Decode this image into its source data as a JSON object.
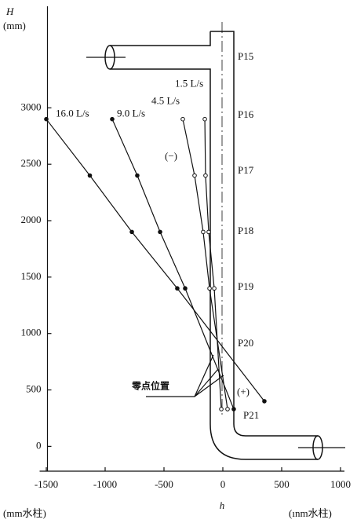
{
  "chart_data": {
    "type": "line",
    "y_label": "H",
    "y_unit": "(mm)",
    "x_label": "h",
    "x_unit_left": "(mm水柱)",
    "x_unit_right": "(ınm水柱)",
    "xlim": [
      -1490,
      1100
    ],
    "ylim": [
      -220,
      3900
    ],
    "xticks": [
      -1500,
      -1000,
      -500,
      0,
      500,
      1000
    ],
    "yticks": [
      0,
      500,
      1000,
      1500,
      2000,
      2500,
      3000
    ],
    "series": [
      {
        "name": "16.0 L/s",
        "color": "#111",
        "marker": "filled",
        "x": [
          -1500,
          -1130,
          -773,
          -387,
          353
        ],
        "values": [
          2900,
          2400,
          1900,
          1400,
          400
        ]
      },
      {
        "name": "9.0 L/s",
        "color": "#111",
        "marker": "filled",
        "x": [
          -940,
          -727,
          -533,
          -320,
          93
        ],
        "values": [
          2900,
          2400,
          1900,
          1400,
          330
        ]
      },
      {
        "name": "4.5 L/s",
        "color": "#111",
        "marker": "open",
        "x": [
          -340,
          -240,
          -167,
          -113,
          40
        ],
        "values": [
          2900,
          2400,
          1900,
          1400,
          330
        ]
      },
      {
        "name": "1.5 L/s",
        "color": "#111",
        "marker": "open",
        "x": [
          -153,
          -147,
          -120,
          -73,
          -13
        ],
        "values": [
          2900,
          2400,
          1900,
          1400,
          330
        ]
      }
    ],
    "annotations": [
      "(−)",
      "(+)",
      "零点位置"
    ],
    "pipe_labels": [
      "P15",
      "P16",
      "P17",
      "P18",
      "P19",
      "P20",
      "P21"
    ]
  }
}
